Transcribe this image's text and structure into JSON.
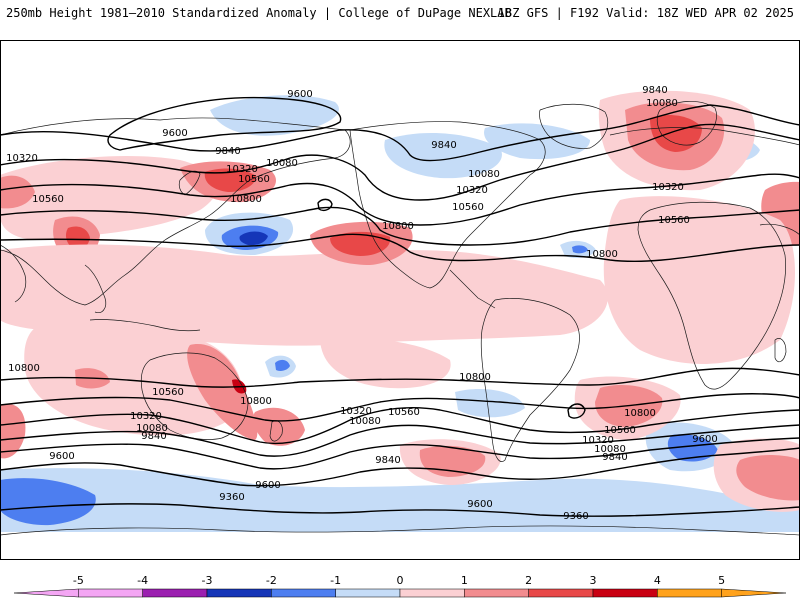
{
  "header": {
    "left": "250mb Height 1981–2010 Standardized Anomaly | College of DuPage NEXLAB",
    "right": "18Z GFS | F192 Valid: 18Z WED APR 02 2025"
  },
  "colors": {
    "m5": "#f4a6f4",
    "m4": "#9b1fb0",
    "m3": "#1536b8",
    "m2": "#4d7ef0",
    "m1": "#c5dcf7",
    "zero": "#ffffff",
    "p1": "#fbd0d3",
    "p2": "#f28c8f",
    "p3": "#e84848",
    "p4": "#c90012",
    "p5": "#ffa21c",
    "land": "#f4f4f4",
    "coast": "#1a1a1a",
    "contour": "#000000"
  },
  "map": {
    "contour_labels": [
      {
        "id": "c1",
        "text": "9600"
      },
      {
        "id": "c2",
        "text": "9600"
      },
      {
        "id": "c3",
        "text": "10320"
      },
      {
        "id": "c4",
        "text": "10560"
      },
      {
        "id": "c5",
        "text": "9840"
      },
      {
        "id": "c6",
        "text": "10080"
      },
      {
        "id": "c7",
        "text": "10320"
      },
      {
        "id": "c8",
        "text": "10560"
      },
      {
        "id": "c9",
        "text": "10800"
      },
      {
        "id": "c10",
        "text": "9840"
      },
      {
        "id": "c11",
        "text": "10080"
      },
      {
        "id": "c12",
        "text": "10320"
      },
      {
        "id": "c13",
        "text": "10560"
      },
      {
        "id": "c14",
        "text": "10800"
      },
      {
        "id": "c15",
        "text": "9840"
      },
      {
        "id": "c16",
        "text": "10080"
      },
      {
        "id": "c17",
        "text": "10320"
      },
      {
        "id": "c18",
        "text": "10560"
      },
      {
        "id": "c19",
        "text": "10800"
      },
      {
        "id": "c20",
        "text": "10800"
      },
      {
        "id": "c21",
        "text": "10560"
      },
      {
        "id": "c22",
        "text": "10800"
      },
      {
        "id": "c23",
        "text": "10800"
      },
      {
        "id": "c24",
        "text": "10320"
      },
      {
        "id": "c25",
        "text": "10080"
      },
      {
        "id": "c26",
        "text": "9840"
      },
      {
        "id": "c27",
        "text": "9600"
      },
      {
        "id": "c28",
        "text": "10320"
      },
      {
        "id": "c29",
        "text": "10560"
      },
      {
        "id": "c30",
        "text": "10080"
      },
      {
        "id": "c31",
        "text": "9840"
      },
      {
        "id": "c32",
        "text": "9600"
      },
      {
        "id": "c33",
        "text": "9360"
      },
      {
        "id": "c34",
        "text": "9600"
      },
      {
        "id": "c35",
        "text": "9360"
      },
      {
        "id": "c36",
        "text": "10800"
      },
      {
        "id": "c37",
        "text": "10560"
      },
      {
        "id": "c38",
        "text": "10320"
      },
      {
        "id": "c39",
        "text": "10080"
      },
      {
        "id": "c40",
        "text": "9840"
      },
      {
        "id": "c41",
        "text": "9600"
      }
    ]
  },
  "colorbar": {
    "ticks": [
      "-5",
      "-4",
      "-3",
      "-2",
      "-1",
      "0",
      "1",
      "2",
      "3",
      "4",
      "5"
    ]
  }
}
